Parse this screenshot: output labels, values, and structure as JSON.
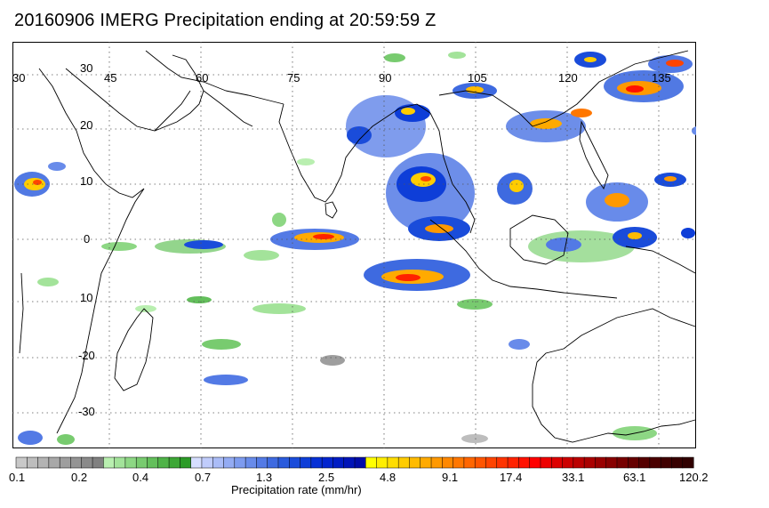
{
  "title": "20160906 IMERG Precipitation ending at 20:59:59 Z",
  "map": {
    "lon_labels": [
      "30",
      "45",
      "60",
      "75",
      "90",
      "105",
      "120",
      "135"
    ],
    "lat_labels": [
      "30",
      "20",
      "10",
      "0",
      "10",
      "-20",
      "-30"
    ],
    "extent": {
      "lon_min": 30,
      "lon_max": 141,
      "lat_min": -37,
      "lat_max": 36
    },
    "gridline_style": "dotted",
    "land_outline_color": "#000000",
    "background_color": "#ffffff"
  },
  "colorbar": {
    "label": "Precipitation rate (mm/hr)",
    "tick_labels": [
      "0.1",
      "0.2",
      "0.4",
      "0.7",
      "1.3",
      "2.5",
      "4.8",
      "9.1",
      "17.4",
      "33.1",
      "63.1",
      "120.2"
    ],
    "colors": [
      "#c8c8c8",
      "#bdbdbd",
      "#b3b3b3",
      "#a8a8a8",
      "#9e9e9e",
      "#949494",
      "#8a8a8a",
      "#808080",
      "#b9efb0",
      "#a3e39a",
      "#8dd784",
      "#78cb6f",
      "#63bf5b",
      "#4fb348",
      "#3da736",
      "#2c9b27",
      "#d6deff",
      "#c0ccfb",
      "#aabcf7",
      "#93abf3",
      "#7d9bef",
      "#688bea",
      "#537ae5",
      "#3e6ae0",
      "#2a5bdc",
      "#1a4cda",
      "#0e3ed8",
      "#0630d6",
      "#0325cf",
      "#001cc4",
      "#0014b8",
      "#000ca8",
      "#ffff00",
      "#ffee00",
      "#ffdd00",
      "#ffcc00",
      "#ffbb00",
      "#ffaa00",
      "#ff9900",
      "#ff8800",
      "#ff7700",
      "#ff6600",
      "#ff5500",
      "#ff4400",
      "#ff3300",
      "#ff2200",
      "#ff1100",
      "#ff0000",
      "#ee0000",
      "#dd0000",
      "#cc0000",
      "#bb0000",
      "#aa0000",
      "#990000",
      "#880000",
      "#770000",
      "#660000",
      "#550000",
      "#4a0000",
      "#400000",
      "#380000",
      "#300000"
    ]
  }
}
